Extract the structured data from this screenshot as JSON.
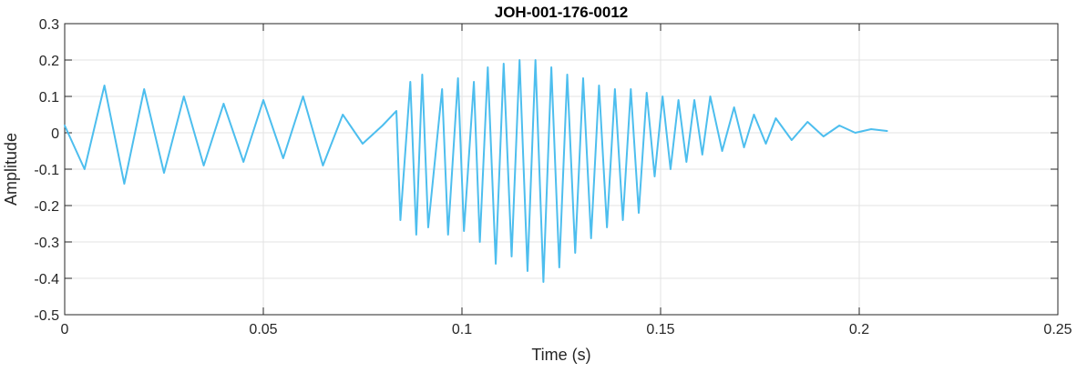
{
  "chart_data": {
    "type": "line",
    "title": "JOH-001-176-0012",
    "xlabel": "Time (s)",
    "ylabel": "Amplitude",
    "xlim": [
      0,
      0.25
    ],
    "ylim": [
      -0.5,
      0.3
    ],
    "xticks": [
      0,
      0.05,
      0.1,
      0.15,
      0.2,
      0.25
    ],
    "xtick_labels": [
      "0",
      "0.05",
      "0.1",
      "0.15",
      "0.2",
      "0.25"
    ],
    "yticks": [
      -0.5,
      -0.4,
      -0.3,
      -0.2,
      -0.1,
      0,
      0.1,
      0.2,
      0.3
    ],
    "ytick_labels": [
      "-0.5",
      "-0.4",
      "-0.3",
      "-0.2",
      "-0.1",
      "0",
      "0.1",
      "0.2",
      "0.3"
    ],
    "grid": true,
    "series": [
      {
        "color": "#4DBEEE",
        "x": [
          0.0,
          0.005,
          0.01,
          0.015,
          0.02,
          0.025,
          0.03,
          0.035,
          0.04,
          0.045,
          0.05,
          0.055,
          0.06,
          0.065,
          0.07,
          0.075,
          0.08,
          0.0835,
          0.0845,
          0.087,
          0.0885,
          0.09,
          0.0915,
          0.095,
          0.0965,
          0.099,
          0.1005,
          0.103,
          0.1045,
          0.1065,
          0.1085,
          0.1105,
          0.1125,
          0.1145,
          0.1165,
          0.1185,
          0.1205,
          0.1225,
          0.1245,
          0.1265,
          0.1285,
          0.1305,
          0.1325,
          0.1345,
          0.1365,
          0.1385,
          0.1405,
          0.1425,
          0.1445,
          0.1465,
          0.1485,
          0.1505,
          0.1525,
          0.1545,
          0.1565,
          0.1585,
          0.1605,
          0.1625,
          0.1655,
          0.1685,
          0.171,
          0.1735,
          0.1765,
          0.179,
          0.183,
          0.187,
          0.191,
          0.195,
          0.199,
          0.203,
          0.207
        ],
        "y": [
          0.02,
          -0.1,
          0.13,
          -0.14,
          0.12,
          -0.11,
          0.1,
          -0.09,
          0.08,
          -0.08,
          0.09,
          -0.07,
          0.1,
          -0.09,
          0.05,
          -0.03,
          0.02,
          0.06,
          -0.24,
          0.14,
          -0.28,
          0.16,
          -0.26,
          0.12,
          -0.28,
          0.15,
          -0.27,
          0.14,
          -0.3,
          0.18,
          -0.36,
          0.19,
          -0.34,
          0.2,
          -0.38,
          0.2,
          -0.41,
          0.18,
          -0.37,
          0.16,
          -0.33,
          0.15,
          -0.29,
          0.13,
          -0.26,
          0.12,
          -0.24,
          0.12,
          -0.22,
          0.11,
          -0.12,
          0.1,
          -0.1,
          0.09,
          -0.08,
          0.09,
          -0.06,
          0.1,
          -0.05,
          0.07,
          -0.04,
          0.05,
          -0.03,
          0.04,
          -0.02,
          0.03,
          -0.01,
          0.02,
          0.0,
          0.01,
          0.005
        ]
      }
    ]
  }
}
